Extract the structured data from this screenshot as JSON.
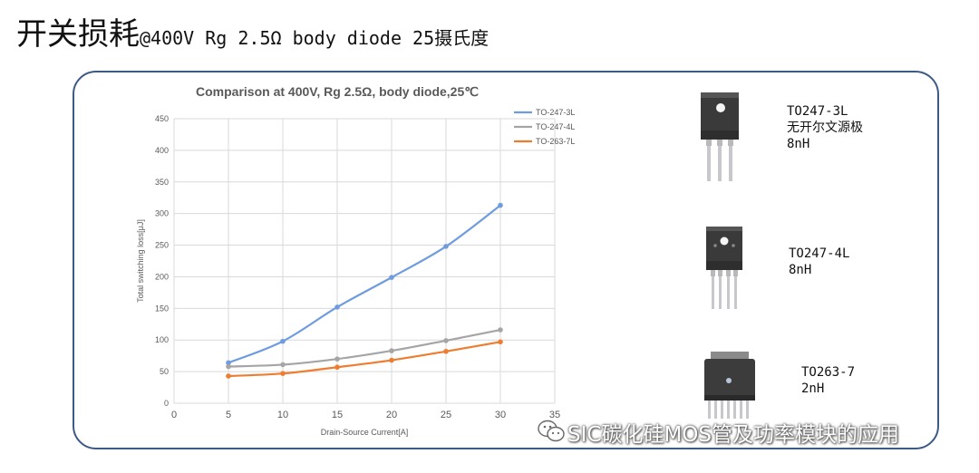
{
  "slide": {
    "title_main": "开关损耗",
    "title_sub": "@400V Rg 2.5Ω body diode 25摄氏度"
  },
  "chart_data": {
    "type": "line",
    "title": "Comparison at 400V, Rg 2.5Ω, body diode,25℃",
    "xlabel": "Drain-Source Current[A]",
    "ylabel": "Total switching loss[μJ]",
    "xlim": [
      0,
      35
    ],
    "ylim": [
      0,
      450
    ],
    "xticks": [
      0,
      5,
      10,
      15,
      20,
      25,
      30,
      35
    ],
    "yticks": [
      0,
      50,
      100,
      150,
      200,
      250,
      300,
      350,
      400,
      450
    ],
    "grid": true,
    "legend_position": "top-right",
    "x": [
      5,
      10,
      15,
      20,
      25,
      30
    ],
    "series": [
      {
        "name": "TO-247-3L",
        "color": "#6f9be0",
        "values": [
          64,
          98,
          152,
          199,
          248,
          313
        ]
      },
      {
        "name": "TO-247-4L",
        "color": "#a5a5a5",
        "values": [
          58,
          61,
          70,
          83,
          99,
          116
        ]
      },
      {
        "name": "TO-263-7L",
        "color": "#ed7d31",
        "values": [
          43,
          47,
          57,
          68,
          82,
          97
        ]
      }
    ]
  },
  "packages": [
    {
      "name": "TO247-3L",
      "lines": [
        "TO247-3L",
        "无开尔文源极",
        "8nH"
      ],
      "icon": "to247-3l-package-icon"
    },
    {
      "name": "TO247-4L",
      "lines": [
        "TO247-4L",
        "8nH"
      ],
      "icon": "to247-4l-package-icon"
    },
    {
      "name": "TO263-7",
      "lines": [
        "TO263-7",
        "2nH"
      ],
      "icon": "to263-7-package-icon"
    }
  ],
  "watermark": {
    "text": "SIC碳化硅MOS管及功率模块的应用",
    "icon": "wechat-icon"
  }
}
